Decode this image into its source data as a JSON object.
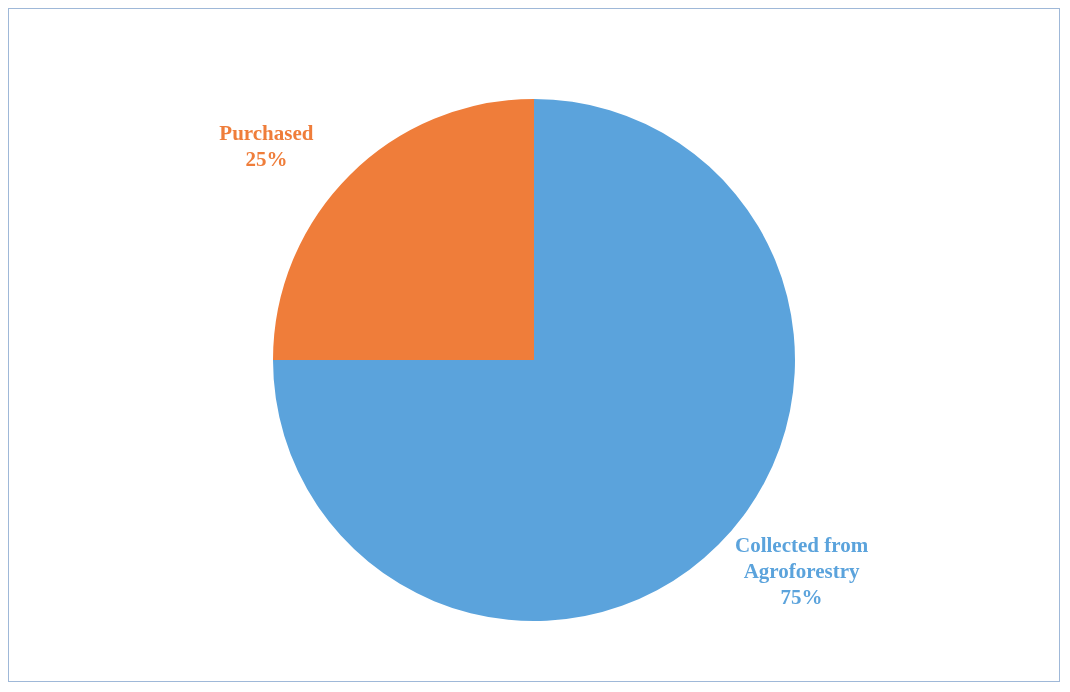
{
  "chart_data": {
    "type": "pie",
    "categories": [
      "Collected from Agroforestry",
      "Purchased"
    ],
    "values": [
      75,
      25
    ],
    "colors": [
      "#5ba3dc",
      "#ef7d3a"
    ],
    "value_labels": [
      "75%",
      "25%"
    ],
    "legend": false
  }
}
